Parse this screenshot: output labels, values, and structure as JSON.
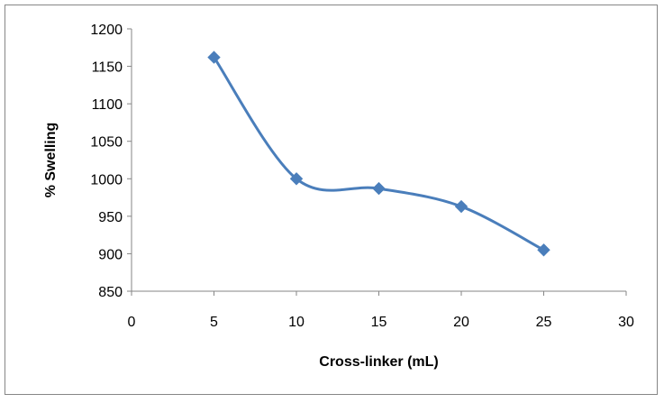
{
  "chart_data": {
    "type": "line",
    "title": "",
    "xlabel": "Cross-linker (mL)",
    "ylabel": "% Swelling",
    "xlim": [
      0,
      30
    ],
    "ylim": [
      850,
      1200
    ],
    "xticks": [
      0,
      5,
      10,
      15,
      20,
      25,
      30
    ],
    "yticks": [
      850,
      900,
      950,
      1000,
      1050,
      1100,
      1150,
      1200
    ],
    "grid": false,
    "legend": "none",
    "smooth": true,
    "marker": "diamond",
    "color": "#4a7ebb",
    "series": [
      {
        "x": [
          5,
          10,
          15,
          20,
          25
        ],
        "y": [
          1162,
          1000,
          987,
          963,
          905
        ]
      }
    ]
  }
}
